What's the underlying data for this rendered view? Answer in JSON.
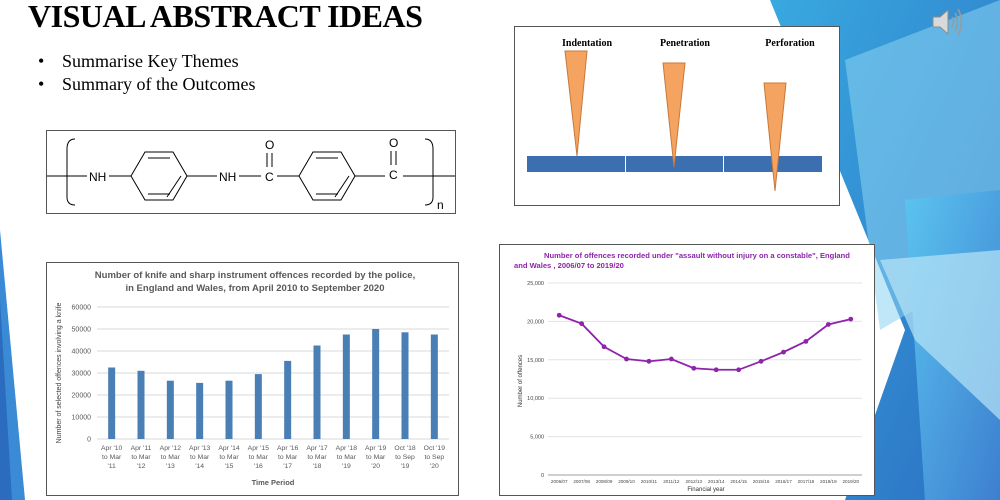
{
  "slide": {
    "title": "VISUAL ABSTRACT IDEAS",
    "bullets": [
      "Summarise Key Themes",
      "Summary of the Outcomes"
    ],
    "bullet_symbol": "•"
  },
  "chemical_structure": {
    "labels": {
      "nh1": "NH",
      "nh2": "NH",
      "c1": "C",
      "c2": "C",
      "o1": "O",
      "o2": "O",
      "n": "n"
    }
  },
  "indentation_diagram": {
    "labels": [
      "Indentation",
      "Penetration",
      "Perforation"
    ],
    "colors": {
      "needle": "#f4a460",
      "needle_edge": "#c8783a",
      "plate": "#3c6fb0"
    }
  },
  "chart_data": [
    {
      "type": "bar",
      "title": "Number of knife and sharp instrument offences recorded by the police, in England and Wales, from April 2010 to September 2020",
      "title_lines": [
        "Number of knife and sharp instrument offences recorded by the police,",
        "in England and Wales, from April 2010 to September 2020"
      ],
      "xlabel": "Time Period",
      "ylabel": "Number of selected offences involving a knife",
      "ylim": [
        0,
        60000
      ],
      "yticks": [
        "0",
        "10000",
        "20000",
        "30000",
        "40000",
        "50000",
        "60000"
      ],
      "grid": true,
      "color": "#4a7fb5",
      "categories": [
        [
          "Apr '10",
          "to Mar",
          "'11"
        ],
        [
          "Apr '11",
          "to Mar",
          "'12"
        ],
        [
          "Apr '12",
          "to Mar",
          "'13"
        ],
        [
          "Apr '13",
          "to Mar",
          "'14"
        ],
        [
          "Apr '14",
          "to Mar",
          "'15"
        ],
        [
          "Apr '15",
          "to Mar",
          "'16"
        ],
        [
          "Apr '16",
          "to Mar",
          "'17"
        ],
        [
          "Apr '17",
          "to Mar",
          "'18"
        ],
        [
          "Apr '18",
          "to Mar",
          "'19"
        ],
        [
          "Apr '19",
          "to Mar",
          "'20"
        ],
        [
          "Oct '18",
          "to Sep",
          "'19"
        ],
        [
          "Oct '19",
          "to Sep",
          "'20"
        ]
      ],
      "values": [
        32500,
        31000,
        26500,
        25500,
        26500,
        29500,
        35500,
        42500,
        47500,
        50000,
        48500,
        47500
      ]
    },
    {
      "type": "line",
      "title": "Number of offences recorded under \"assault without injury on a constable\", England and Wales , 2006/07 to 2019/20",
      "title_lines": [
        "Number of offences recorded under \"assault without injury on a constable\", England",
        "and Wales , 2006/07 to 2019/20"
      ],
      "xlabel": "Financial year",
      "ylabel": "Number of offences",
      "ylim": [
        0,
        25000
      ],
      "yticks": [
        "0",
        "5,000",
        "10,000",
        "15,000",
        "20,000",
        "25,000"
      ],
      "grid": true,
      "color": "#8e24aa",
      "categories": [
        "2006/07",
        "2007/08",
        "2008/09",
        "2009/10",
        "2010/11",
        "2011/12",
        "2012/13",
        "2013/14",
        "2014/15",
        "2015/16",
        "2016/17",
        "2017/18",
        "2018/19",
        "2019/20"
      ],
      "values": [
        20800,
        19700,
        16700,
        15100,
        14800,
        15100,
        13900,
        13700,
        13700,
        14800,
        16000,
        17400,
        19600,
        20300
      ]
    }
  ]
}
